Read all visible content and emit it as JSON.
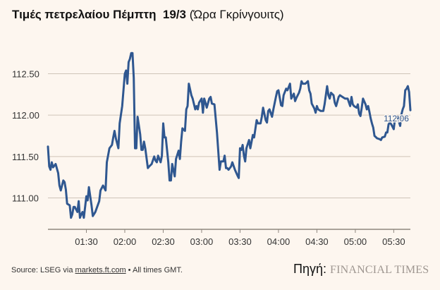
{
  "title": {
    "bold": "Τιμές πετρελαίου Πέμπτη  19/3",
    "normal": " (Ώρα Γκρίνγουιτς)"
  },
  "source": {
    "prefix": "Source: LSEG via ",
    "link": "markets.ft.com",
    "suffix": " • All times GMT."
  },
  "credit": {
    "label": "Πηγή:",
    "brand": "FINANCIAL TIMES"
  },
  "colors": {
    "line": "#2f5790",
    "grid": "#cfc4b8",
    "background": "#fdf6ef",
    "label": "#333333"
  },
  "chart_data": {
    "type": "line",
    "title": "Τιμές πετρελαίου Πέμπτη  19/3 (Ώρα Γκρίνγουιτς)",
    "xlabel": "",
    "ylabel": "",
    "x_ticks": [
      "01:30",
      "02:00",
      "02:30",
      "03:00",
      "03:30",
      "04:00",
      "04:30",
      "05:00",
      "05:30"
    ],
    "y_ticks": [
      "111.00",
      "111.50",
      "112.00",
      "112.50"
    ],
    "xlim": [
      "01:00",
      "05:43"
    ],
    "ylim": [
      110.62,
      112.88
    ],
    "grid": "horizontal",
    "end_label": "112.06",
    "x": [
      "01:00",
      "01:01",
      "01:02",
      "01:03",
      "01:04",
      "01:06",
      "01:08",
      "01:09",
      "01:10",
      "01:12",
      "01:13",
      "01:14",
      "01:15",
      "01:17",
      "01:18",
      "01:19",
      "01:20",
      "01:21",
      "01:23",
      "01:24",
      "01:25",
      "01:26",
      "01:27",
      "01:28",
      "01:30",
      "01:31",
      "01:32",
      "01:34",
      "01:35",
      "01:37",
      "01:40",
      "01:41",
      "01:43",
      "01:45",
      "01:46",
      "01:48",
      "01:50",
      "01:51",
      "01:52",
      "01:53",
      "01:55",
      "01:56",
      "01:58",
      "02:00",
      "02:01",
      "02:02",
      "02:03",
      "02:04",
      "02:05",
      "02:06",
      "02:07",
      "02:08",
      "02:09",
      "02:10",
      "02:12",
      "02:13",
      "02:14",
      "02:15",
      "02:16",
      "02:18",
      "02:19",
      "02:21",
      "02:23",
      "02:24",
      "02:25",
      "02:26",
      "02:28",
      "02:29",
      "02:30",
      "02:31",
      "02:32",
      "02:34",
      "02:35",
      "02:36",
      "02:37",
      "02:39",
      "02:40",
      "02:42",
      "02:43",
      "02:44",
      "02:45",
      "02:47",
      "02:48",
      "02:49",
      "02:50",
      "02:52",
      "02:53",
      "02:55",
      "02:56",
      "02:57",
      "02:58",
      "03:00",
      "03:01",
      "03:02",
      "03:03",
      "03:04",
      "03:06",
      "03:07",
      "03:08",
      "03:10",
      "03:12",
      "03:14",
      "03:15",
      "03:17",
      "03:18",
      "03:19",
      "03:20",
      "03:21",
      "03:23",
      "03:24",
      "03:26",
      "03:28",
      "03:29",
      "03:30",
      "03:31",
      "03:32",
      "03:33",
      "03:34",
      "03:35",
      "03:37",
      "03:38",
      "03:40",
      "03:41",
      "03:43",
      "03:44",
      "03:46",
      "03:47",
      "03:48",
      "03:50",
      "03:51",
      "03:52",
      "03:53",
      "03:55",
      "03:56",
      "03:58",
      "03:59",
      "04:00",
      "04:02",
      "04:03",
      "04:04",
      "04:06",
      "04:07",
      "04:09",
      "04:10",
      "04:12",
      "04:13",
      "04:14",
      "04:15",
      "04:16",
      "04:17",
      "04:18",
      "04:19",
      "04:21",
      "04:23",
      "04:24",
      "04:25",
      "04:26",
      "04:28",
      "04:29",
      "04:30",
      "04:31",
      "04:33",
      "04:35",
      "04:36",
      "04:38",
      "04:39",
      "04:40",
      "04:41",
      "04:43",
      "04:44",
      "04:45",
      "04:47",
      "04:48",
      "04:51",
      "04:52",
      "04:54",
      "04:56",
      "04:57",
      "04:58",
      "04:59",
      "05:01",
      "05:02",
      "05:03",
      "05:04",
      "05:05",
      "05:06",
      "05:08",
      "05:09",
      "05:10",
      "05:11",
      "05:12",
      "05:13",
      "05:14",
      "05:15",
      "05:17",
      "05:19",
      "05:20",
      "05:21",
      "05:23",
      "05:24",
      "05:25",
      "05:26",
      "05:27",
      "05:28",
      "05:30",
      "05:31",
      "05:32",
      "05:33",
      "05:35",
      "05:36",
      "05:37",
      "05:38",
      "05:39",
      "05:40",
      "05:41",
      "05:42",
      "05:43"
    ],
    "values": [
      111.62,
      111.38,
      111.34,
      111.43,
      111.37,
      111.41,
      111.3,
      111.15,
      111.09,
      111.21,
      111.19,
      111.1,
      110.93,
      110.91,
      110.76,
      110.8,
      110.89,
      110.89,
      110.83,
      110.96,
      110.76,
      110.8,
      110.83,
      110.76,
      111.02,
      110.97,
      111.13,
      110.91,
      110.78,
      110.83,
      110.96,
      111.09,
      111.15,
      111.09,
      111.43,
      111.6,
      111.64,
      111.73,
      111.81,
      111.72,
      111.6,
      111.9,
      112.11,
      112.5,
      112.54,
      112.38,
      112.64,
      112.68,
      112.75,
      112.75,
      112.45,
      111.6,
      111.6,
      111.98,
      111.77,
      111.58,
      111.58,
      111.68,
      111.6,
      111.36,
      111.38,
      111.41,
      111.5,
      111.45,
      111.43,
      111.51,
      111.43,
      111.51,
      111.9,
      111.73,
      111.73,
      111.43,
      111.21,
      111.21,
      111.41,
      111.26,
      111.47,
      111.57,
      111.47,
      111.68,
      111.84,
      111.81,
      112.07,
      112.11,
      112.38,
      112.24,
      112.2,
      112.07,
      112.11,
      112.07,
      112.15,
      112.2,
      112.03,
      112.2,
      112.15,
      112.09,
      112.2,
      112.22,
      112.14,
      112.13,
      111.79,
      111.34,
      111.44,
      111.44,
      111.51,
      111.36,
      111.36,
      111.34,
      111.38,
      111.43,
      111.34,
      111.27,
      111.24,
      111.6,
      111.58,
      111.64,
      111.51,
      111.44,
      111.6,
      111.7,
      111.6,
      111.76,
      111.73,
      111.94,
      111.9,
      111.9,
      111.98,
      112.09,
      111.94,
      111.91,
      112.05,
      112.07,
      111.98,
      112.07,
      112.22,
      112.29,
      112.3,
      112.12,
      112.11,
      112.24,
      112.32,
      112.3,
      112.38,
      112.2,
      112.26,
      112.17,
      112.21,
      112.24,
      112.27,
      112.32,
      112.41,
      112.38,
      112.38,
      112.41,
      112.3,
      112.26,
      112.14,
      112.08,
      112.03,
      112.11,
      112.07,
      112.05,
      112.05,
      112.13,
      112.35,
      112.24,
      112.2,
      112.27,
      112.24,
      112.15,
      112.11,
      112.22,
      112.24,
      112.21,
      112.2,
      112.2,
      112.11,
      112.22,
      112.13,
      112.11,
      112.09,
      112.13,
      112.02,
      111.99,
      112.09,
      112.2,
      112.13,
      112.07,
      112.11,
      112.04,
      111.96,
      111.9,
      111.85,
      111.75,
      111.72,
      111.71,
      111.7,
      111.73,
      111.74,
      111.79,
      111.79,
      111.89,
      111.91,
      111.89,
      111.83,
      111.96,
      111.97,
      111.98,
      111.87,
      112.01,
      112.07,
      112.11,
      112.3,
      112.32,
      112.35,
      112.28,
      112.06
    ]
  }
}
